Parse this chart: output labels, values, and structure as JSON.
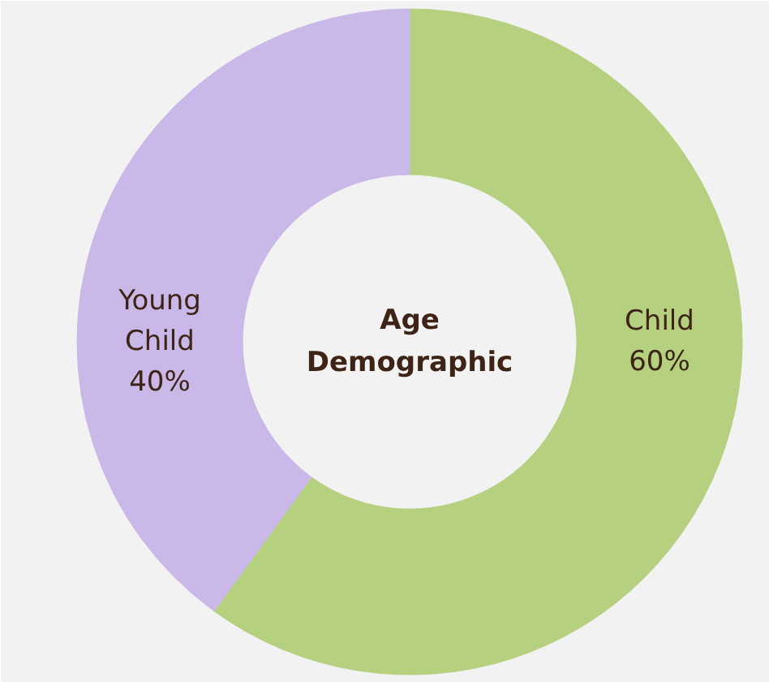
{
  "chart_data": {
    "type": "donut",
    "title": "Age Demographic",
    "categories": [
      "Child",
      "Young Child"
    ],
    "values": [
      60,
      40
    ],
    "value_labels": [
      "60%",
      "40%"
    ],
    "colors": [
      "#b5d07f",
      "#c9b8e8"
    ]
  }
}
